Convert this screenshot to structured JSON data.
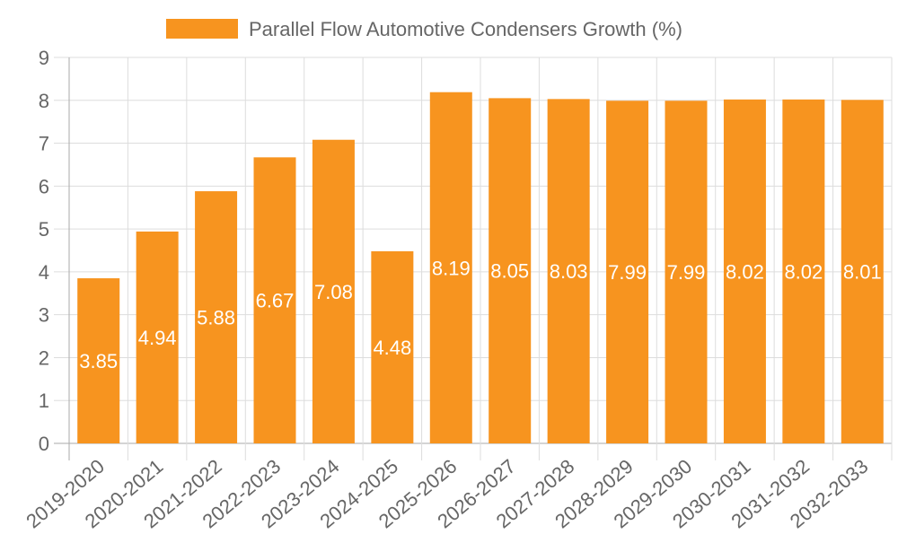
{
  "chart_data": {
    "type": "bar",
    "title": "",
    "legend": {
      "label": "Parallel Flow Automotive Condensers Growth (%)",
      "placement": "top-center"
    },
    "categories": [
      "2019-2020",
      "2020-2021",
      "2021-2022",
      "2022-2023",
      "2023-2024",
      "2024-2025",
      "2025-2026",
      "2026-2027",
      "2027-2028",
      "2028-2029",
      "2029-2030",
      "2030-2031",
      "2031-2032",
      "2032-2033"
    ],
    "values": [
      3.85,
      4.94,
      5.88,
      6.67,
      7.08,
      4.48,
      8.19,
      8.05,
      8.03,
      7.99,
      7.99,
      8.02,
      8.02,
      8.01
    ],
    "xlabel": "",
    "ylabel": "",
    "ylim": [
      0,
      9
    ],
    "yticks": [
      0,
      1,
      2,
      3,
      4,
      5,
      6,
      7,
      8,
      9
    ],
    "grid": true,
    "colors": {
      "bar": "#f7941f",
      "grid": "#dddddd",
      "axis": "#aaaaaa",
      "text": "#666666",
      "label": "#ffffff"
    }
  }
}
